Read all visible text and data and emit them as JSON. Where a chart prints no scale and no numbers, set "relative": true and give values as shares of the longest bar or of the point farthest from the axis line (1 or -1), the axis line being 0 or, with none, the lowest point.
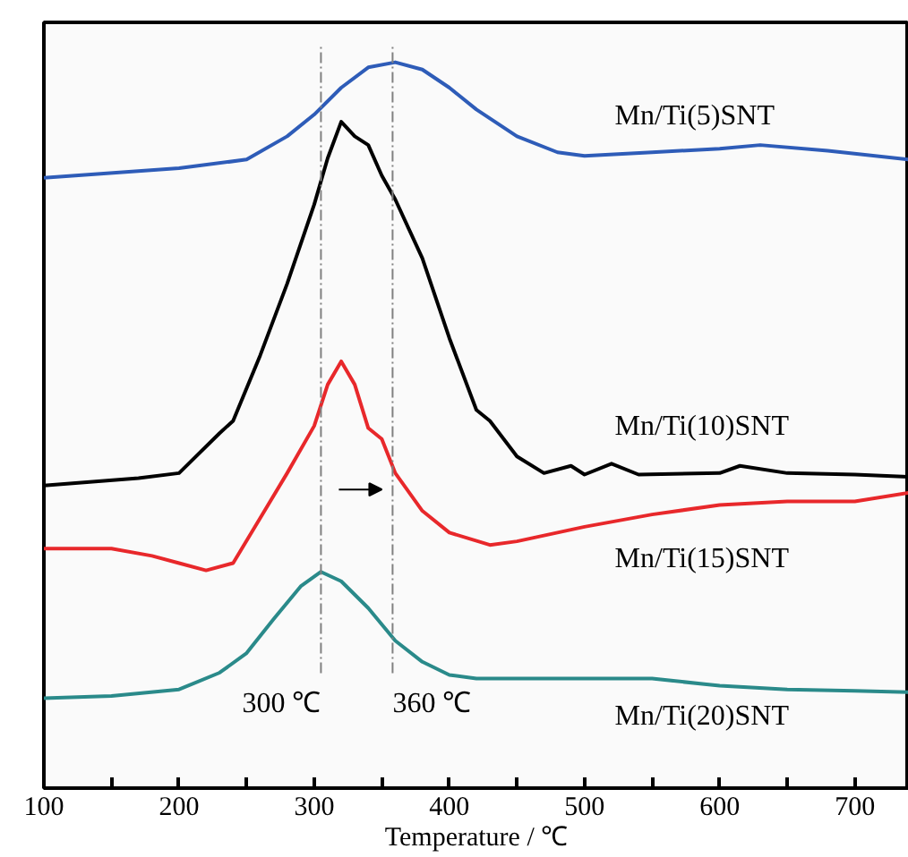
{
  "chart_data": {
    "type": "line",
    "xlabel": "Temperature / ℃",
    "relative": true,
    "grid": false,
    "xlim": [
      100,
      740
    ],
    "xticks": [
      100,
      {
        "value": 150,
        "label": null
      },
      200,
      {
        "value": 250,
        "label": null
      },
      300,
      {
        "value": 350,
        "label": null
      },
      400,
      {
        "value": 450,
        "label": null
      },
      500,
      {
        "value": 550,
        "label": null
      },
      600,
      {
        "value": 650,
        "label": null
      },
      700
    ],
    "ref_lines": [
      {
        "axis": "x",
        "value": 305,
        "label": "300 ℃",
        "color": "#808080",
        "line_style": "dashed"
      },
      {
        "axis": "x",
        "value": 358,
        "label": "360 ℃",
        "color": "#808080",
        "line_style": "dashed"
      }
    ],
    "series": [
      {
        "name": "Mn/Ti(5)SNT",
        "color": "#2e5cb8",
        "x": [
          100,
          200,
          250,
          280,
          300,
          320,
          340,
          360,
          380,
          400,
          420,
          450,
          480,
          500,
          550,
          600,
          630,
          680,
          740
        ],
        "values": [
          0.841,
          0.854,
          0.866,
          0.898,
          0.928,
          0.965,
          0.993,
          1.0,
          0.99,
          0.965,
          0.935,
          0.898,
          0.876,
          0.871,
          0.876,
          0.881,
          0.886,
          0.878,
          0.866
        ]
      },
      {
        "name": "Mn/Ti(10)SNT",
        "color": "#000000",
        "x": [
          100,
          170,
          200,
          230,
          240,
          260,
          280,
          300,
          310,
          320,
          330,
          340,
          350,
          360,
          380,
          400,
          420,
          430,
          450,
          470,
          490,
          500,
          520,
          540,
          600,
          615,
          650,
          700,
          740
        ],
        "values": [
          0.417,
          0.427,
          0.434,
          0.489,
          0.506,
          0.596,
          0.695,
          0.804,
          0.868,
          0.918,
          0.898,
          0.886,
          0.844,
          0.811,
          0.73,
          0.62,
          0.521,
          0.506,
          0.457,
          0.434,
          0.444,
          0.432,
          0.447,
          0.432,
          0.434,
          0.444,
          0.434,
          0.432,
          0.429
        ]
      },
      {
        "name": "Mn/Ti(15)SNT",
        "color": "#e8282b",
        "x": [
          100,
          150,
          180,
          200,
          220,
          240,
          260,
          280,
          300,
          310,
          320,
          330,
          340,
          350,
          360,
          380,
          400,
          430,
          450,
          500,
          550,
          600,
          650,
          700,
          740
        ],
        "values": [
          0.33,
          0.33,
          0.32,
          0.31,
          0.3,
          0.31,
          0.372,
          0.434,
          0.499,
          0.556,
          0.588,
          0.556,
          0.496,
          0.481,
          0.434,
          0.382,
          0.352,
          0.335,
          0.34,
          0.36,
          0.377,
          0.39,
          0.395,
          0.395,
          0.407
        ]
      },
      {
        "name": "Mn/Ti(20)SNT",
        "color": "#2a8a8a",
        "x": [
          100,
          150,
          200,
          230,
          250,
          270,
          290,
          305,
          320,
          340,
          360,
          380,
          400,
          420,
          500,
          550,
          600,
          650,
          700,
          740
        ],
        "values": [
          0.124,
          0.127,
          0.136,
          0.159,
          0.186,
          0.233,
          0.278,
          0.298,
          0.285,
          0.248,
          0.203,
          0.174,
          0.156,
          0.151,
          0.151,
          0.151,
          0.141,
          0.136,
          0.134,
          0.132
        ]
      }
    ]
  }
}
